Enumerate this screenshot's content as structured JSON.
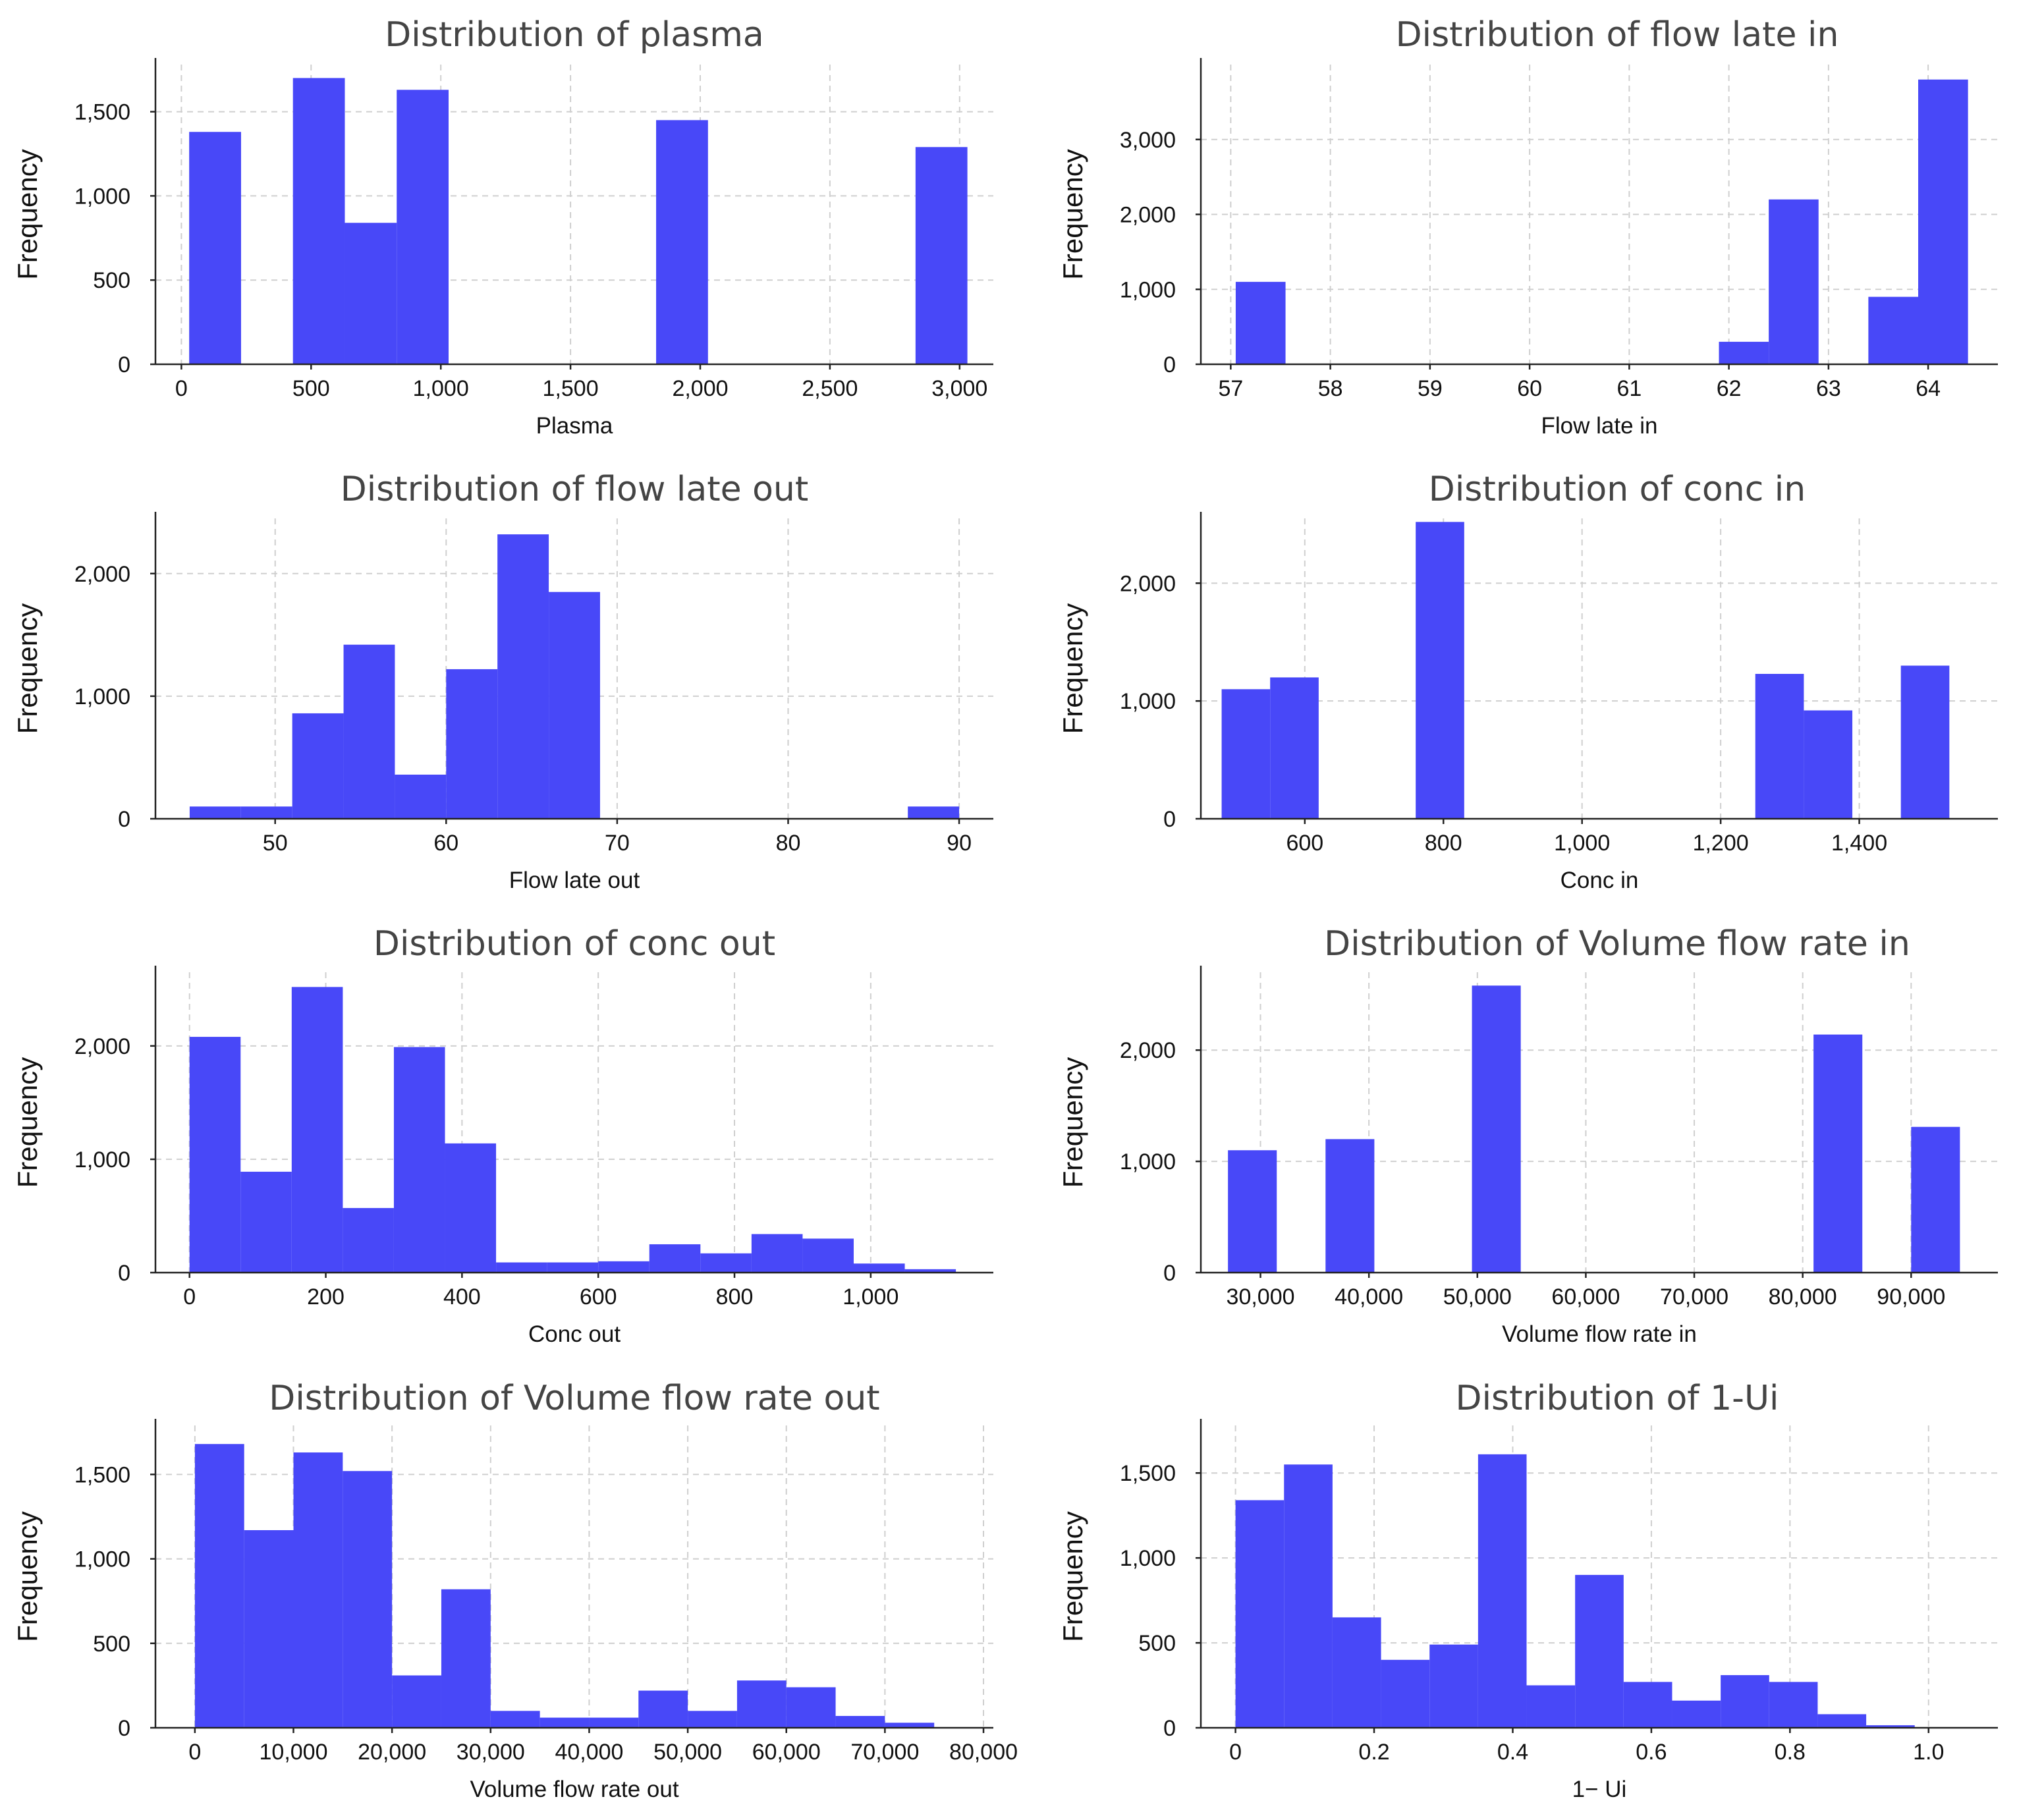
{
  "colors": {
    "bar": "#4848f8",
    "grid": "#cfcfcf",
    "axis": "#222222",
    "title": "#444444"
  },
  "chart_data": [
    {
      "type": "bar",
      "title": "Distribution of plasma",
      "xlabel": "Plasma",
      "ylabel": "Frequency",
      "xlim": [
        -100,
        3130
      ],
      "ylim": [
        0,
        1780
      ],
      "xticks": [
        0,
        500,
        1000,
        1500,
        2000,
        2500,
        3000
      ],
      "xtick_labels": [
        "0",
        "500",
        "1,000",
        "1,500",
        "2,000",
        "2,500",
        "3,000"
      ],
      "yticks": [
        0,
        500,
        1000,
        1500
      ],
      "ytick_labels": [
        "0",
        "500",
        "1,000",
        "1,500"
      ],
      "bins": [
        {
          "x0": 30,
          "x1": 230,
          "count": 1380
        },
        {
          "x0": 430,
          "x1": 630,
          "count": 1700
        },
        {
          "x0": 630,
          "x1": 830,
          "count": 840
        },
        {
          "x0": 830,
          "x1": 1030,
          "count": 1630
        },
        {
          "x0": 1830,
          "x1": 2030,
          "count": 1450
        },
        {
          "x0": 2830,
          "x1": 3030,
          "count": 1290
        }
      ]
    },
    {
      "type": "bar",
      "title": "Distribution of flow late in",
      "xlabel": "Flow late in",
      "ylabel": "Frequency",
      "xlim": [
        56.7,
        64.7
      ],
      "ylim": [
        0,
        4000
      ],
      "xticks": [
        57,
        58,
        59,
        60,
        61,
        62,
        63,
        64
      ],
      "xtick_labels": [
        "57",
        "58",
        "59",
        "60",
        "61",
        "62",
        "63",
        "64"
      ],
      "yticks": [
        0,
        1000,
        2000,
        3000
      ],
      "ytick_labels": [
        "0",
        "1,000",
        "2,000",
        "3,000"
      ],
      "bins": [
        {
          "x0": 57.05,
          "x1": 57.55,
          "count": 1100
        },
        {
          "x0": 61.9,
          "x1": 62.4,
          "count": 300
        },
        {
          "x0": 62.4,
          "x1": 62.9,
          "count": 2200
        },
        {
          "x0": 63.4,
          "x1": 63.9,
          "count": 900
        },
        {
          "x0": 63.9,
          "x1": 64.4,
          "count": 3800
        }
      ]
    },
    {
      "type": "bar",
      "title": "Distribution of flow late out",
      "xlabel": "Flow late out",
      "ylabel": "Frequency",
      "xlim": [
        43,
        92
      ],
      "ylim": [
        0,
        2450
      ],
      "xticks": [
        50,
        60,
        70,
        80,
        90
      ],
      "xtick_labels": [
        "50",
        "60",
        "70",
        "80",
        "90"
      ],
      "yticks": [
        0,
        1000,
        2000
      ],
      "ytick_labels": [
        "0",
        "1,000",
        "2,000"
      ],
      "bins": [
        {
          "x0": 45,
          "x1": 48,
          "count": 100
        },
        {
          "x0": 48,
          "x1": 51,
          "count": 100
        },
        {
          "x0": 51,
          "x1": 54,
          "count": 860
        },
        {
          "x0": 54,
          "x1": 57,
          "count": 1420
        },
        {
          "x0": 57,
          "x1": 60,
          "count": 360
        },
        {
          "x0": 60,
          "x1": 63,
          "count": 1220
        },
        {
          "x0": 63,
          "x1": 66,
          "count": 2320
        },
        {
          "x0": 66,
          "x1": 69,
          "count": 1850
        },
        {
          "x0": 87,
          "x1": 90,
          "count": 100
        }
      ]
    },
    {
      "type": "bar",
      "title": "Distribution of conc in",
      "xlabel": "Conc in",
      "ylabel": "Frequency",
      "xlim": [
        450,
        1600
      ],
      "ylim": [
        0,
        2550
      ],
      "xticks": [
        600,
        800,
        1000,
        1200,
        1400
      ],
      "xtick_labels": [
        "600",
        "800",
        "1,000",
        "1,200",
        "1,400"
      ],
      "yticks": [
        0,
        1000,
        2000
      ],
      "ytick_labels": [
        "0",
        "1,000",
        "2,000"
      ],
      "bins": [
        {
          "x0": 480,
          "x1": 550,
          "count": 1100
        },
        {
          "x0": 550,
          "x1": 620,
          "count": 1200
        },
        {
          "x0": 760,
          "x1": 830,
          "count": 2520
        },
        {
          "x0": 1250,
          "x1": 1320,
          "count": 1230
        },
        {
          "x0": 1320,
          "x1": 1390,
          "count": 920
        },
        {
          "x0": 1460,
          "x1": 1530,
          "count": 1300
        }
      ]
    },
    {
      "type": "bar",
      "title": "Distribution of conc out",
      "xlabel": "Conc out",
      "ylabel": "Frequency",
      "xlim": [
        -50,
        1180
      ],
      "ylim": [
        0,
        2650
      ],
      "xticks": [
        0,
        200,
        400,
        600,
        800,
        1000
      ],
      "xtick_labels": [
        "0",
        "200",
        "400",
        "600",
        "800",
        "1,000"
      ],
      "yticks": [
        0,
        1000,
        2000
      ],
      "ytick_labels": [
        "0",
        "1,000",
        "2,000"
      ],
      "bins": [
        {
          "x0": 0,
          "x1": 75,
          "count": 2080
        },
        {
          "x0": 75,
          "x1": 150,
          "count": 890
        },
        {
          "x0": 150,
          "x1": 225,
          "count": 2520
        },
        {
          "x0": 225,
          "x1": 300,
          "count": 570
        },
        {
          "x0": 300,
          "x1": 375,
          "count": 1990
        },
        {
          "x0": 375,
          "x1": 450,
          "count": 1140
        },
        {
          "x0": 450,
          "x1": 525,
          "count": 90
        },
        {
          "x0": 525,
          "x1": 600,
          "count": 90
        },
        {
          "x0": 600,
          "x1": 675,
          "count": 100
        },
        {
          "x0": 675,
          "x1": 750,
          "count": 250
        },
        {
          "x0": 750,
          "x1": 825,
          "count": 170
        },
        {
          "x0": 825,
          "x1": 900,
          "count": 340
        },
        {
          "x0": 900,
          "x1": 975,
          "count": 300
        },
        {
          "x0": 975,
          "x1": 1050,
          "count": 80
        },
        {
          "x0": 1050,
          "x1": 1125,
          "count": 30
        }
      ]
    },
    {
      "type": "bar",
      "title": "Distribution of Volume flow rate in",
      "xlabel": "Volume flow rate in",
      "ylabel": "Frequency",
      "xlim": [
        24500,
        98000
      ],
      "ylim": [
        0,
        2700
      ],
      "xticks": [
        30000,
        40000,
        50000,
        60000,
        70000,
        80000,
        90000
      ],
      "xtick_labels": [
        "30,000",
        "40,000",
        "50,000",
        "60,000",
        "70,000",
        "80,000",
        "90,000"
      ],
      "yticks": [
        0,
        1000,
        2000
      ],
      "ytick_labels": [
        "0",
        "1,000",
        "2,000"
      ],
      "bins": [
        {
          "x0": 27000,
          "x1": 31500,
          "count": 1100
        },
        {
          "x0": 36000,
          "x1": 40500,
          "count": 1200
        },
        {
          "x0": 49500,
          "x1": 54000,
          "count": 2580
        },
        {
          "x0": 81000,
          "x1": 85500,
          "count": 2140
        },
        {
          "x0": 90000,
          "x1": 94500,
          "count": 1310
        }
      ]
    },
    {
      "type": "bar",
      "title": "Distribution of Volume flow rate out",
      "xlabel": "Volume flow rate out",
      "ylabel": "Frequency",
      "xlim": [
        -4000,
        81000
      ],
      "ylim": [
        0,
        1790
      ],
      "xticks": [
        0,
        10000,
        20000,
        30000,
        40000,
        50000,
        60000,
        70000,
        80000
      ],
      "xtick_labels": [
        "0",
        "10,000",
        "20,000",
        "30,000",
        "40,000",
        "50,000",
        "60,000",
        "70,000",
        "80,000"
      ],
      "yticks": [
        0,
        500,
        1000,
        1500
      ],
      "ytick_labels": [
        "0",
        "500",
        "1,000",
        "1,500"
      ],
      "bins": [
        {
          "x0": 0,
          "x1": 5000,
          "count": 1680
        },
        {
          "x0": 5000,
          "x1": 10000,
          "count": 1170
        },
        {
          "x0": 10000,
          "x1": 15000,
          "count": 1630
        },
        {
          "x0": 15000,
          "x1": 20000,
          "count": 1520
        },
        {
          "x0": 20000,
          "x1": 25000,
          "count": 310
        },
        {
          "x0": 25000,
          "x1": 30000,
          "count": 820
        },
        {
          "x0": 30000,
          "x1": 35000,
          "count": 100
        },
        {
          "x0": 35000,
          "x1": 40000,
          "count": 60
        },
        {
          "x0": 40000,
          "x1": 45000,
          "count": 60
        },
        {
          "x0": 45000,
          "x1": 50000,
          "count": 220
        },
        {
          "x0": 50000,
          "x1": 55000,
          "count": 100
        },
        {
          "x0": 55000,
          "x1": 60000,
          "count": 280
        },
        {
          "x0": 60000,
          "x1": 65000,
          "count": 240
        },
        {
          "x0": 65000,
          "x1": 70000,
          "count": 70
        },
        {
          "x0": 70000,
          "x1": 75000,
          "count": 30
        }
      ]
    },
    {
      "type": "bar",
      "title": "Distribution of 1-Ui",
      "xlabel": "1− Ui",
      "ylabel": "Frequency",
      "xlim": [
        -0.05,
        1.1
      ],
      "ylim": [
        0,
        1780
      ],
      "xticks": [
        0,
        0.2,
        0.4,
        0.6,
        0.8,
        1.0
      ],
      "xtick_labels": [
        "0",
        "0.2",
        "0.4",
        "0.6",
        "0.8",
        "1.0"
      ],
      "yticks": [
        0,
        500,
        1000,
        1500
      ],
      "ytick_labels": [
        "0",
        "500",
        "1,000",
        "1,500"
      ],
      "bins": [
        {
          "x0": 0,
          "x1": 0.07,
          "count": 1340
        },
        {
          "x0": 0.07,
          "x1": 0.14,
          "count": 1550
        },
        {
          "x0": 0.14,
          "x1": 0.21,
          "count": 650
        },
        {
          "x0": 0.21,
          "x1": 0.28,
          "count": 400
        },
        {
          "x0": 0.28,
          "x1": 0.35,
          "count": 490
        },
        {
          "x0": 0.35,
          "x1": 0.42,
          "count": 1610
        },
        {
          "x0": 0.42,
          "x1": 0.49,
          "count": 250
        },
        {
          "x0": 0.49,
          "x1": 0.56,
          "count": 900
        },
        {
          "x0": 0.56,
          "x1": 0.63,
          "count": 270
        },
        {
          "x0": 0.63,
          "x1": 0.7,
          "count": 160
        },
        {
          "x0": 0.7,
          "x1": 0.77,
          "count": 310
        },
        {
          "x0": 0.77,
          "x1": 0.84,
          "count": 270
        },
        {
          "x0": 0.84,
          "x1": 0.91,
          "count": 80
        },
        {
          "x0": 0.91,
          "x1": 0.98,
          "count": 15
        }
      ]
    }
  ]
}
